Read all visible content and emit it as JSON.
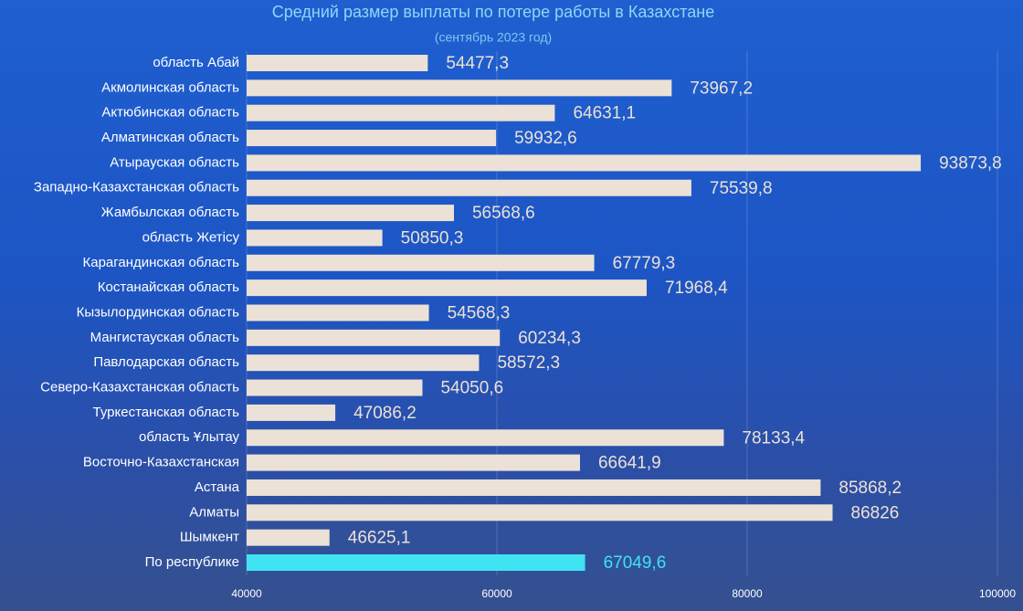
{
  "chart_data": {
    "type": "barh",
    "title": "Средний размер выплаты по потере работы в Казахстане",
    "subtitle": "(сентябрь 2023 год)",
    "categories": [
      "область Абай",
      "Акмолинская область",
      "Актюбинская область",
      "Алматинская область",
      "Атырауская область",
      "Западно-Казахстанская область",
      "Жамбылская область",
      "область Жетісу",
      "Карагандинская область",
      "Костанайская область",
      "Кызылординская область",
      "Мангистауская область",
      "Павлодарская область",
      "Северо-Казахстанская область",
      "Туркестанская область",
      "область Ұлытау",
      "Восточно-Казахстанская",
      "Астана",
      "Алматы",
      "Шымкент",
      "По республике"
    ],
    "values": [
      54477.3,
      73967.2,
      64631.1,
      59932.6,
      93873.8,
      75539.8,
      56568.6,
      50850.3,
      67779.3,
      71968.4,
      54568.3,
      60234.3,
      58572.3,
      54050.6,
      47086.2,
      78133.4,
      66641.9,
      85868.2,
      86826,
      46625.1,
      67049.6
    ],
    "value_labels": [
      "54477,3",
      "73967,2",
      "64631,1",
      "59932,6",
      "93873,8",
      "75539,8",
      "56568,6",
      "50850,3",
      "67779,3",
      "71968,4",
      "54568,3",
      "60234,3",
      "58572,3",
      "54050,6",
      "47086,2",
      "78133,4",
      "66641,9",
      "85868,2",
      "86826",
      "46625,1",
      "67049,6"
    ],
    "colors": [
      "#ebe1d6",
      "#ebe1d6",
      "#ebe1d6",
      "#ebe1d6",
      "#ebe1d6",
      "#ebe1d6",
      "#ebe1d6",
      "#ebe1d6",
      "#ebe1d6",
      "#ebe1d6",
      "#ebe1d6",
      "#ebe1d6",
      "#ebe1d6",
      "#ebe1d6",
      "#ebe1d6",
      "#ebe1d6",
      "#ebe1d6",
      "#ebe1d6",
      "#ebe1d6",
      "#ebe1d6",
      "#3fe3f2"
    ],
    "xlim": [
      40000,
      100000
    ],
    "xticks": [
      40000,
      60000,
      80000,
      100000
    ],
    "grid": true
  }
}
